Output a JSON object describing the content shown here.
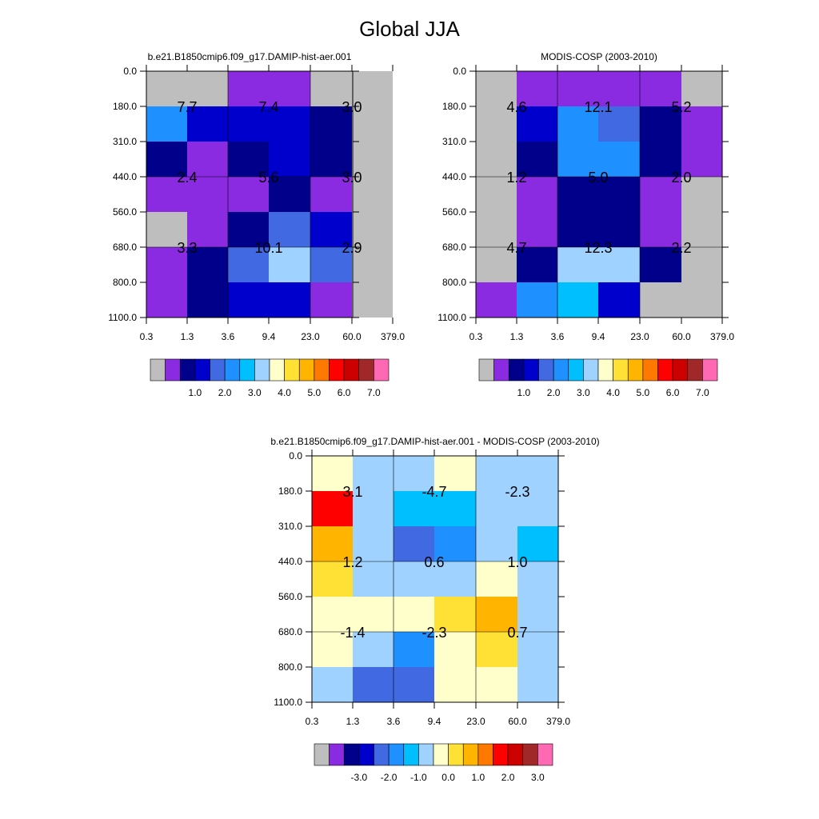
{
  "figure": {
    "title": "Global JJA"
  },
  "palette": {
    "missing": "#bebebe",
    "levels": [
      "#8a2be2",
      "#00008b",
      "#0000cd",
      "#4169e1",
      "#1e90ff",
      "#00bfff",
      "#a0d2ff",
      "#ffffcc",
      "#ffe135",
      "#ffb400",
      "#ff7800",
      "#ff0000",
      "#cd0000",
      "#a02828",
      "#ff69b4"
    ]
  },
  "colorbars": [
    {
      "labels": [
        "1.0",
        "2.0",
        "3.0",
        "4.0",
        "5.0",
        "6.0",
        "7.0"
      ]
    },
    {
      "labels": [
        "-3.0",
        "-2.0",
        "-1.0",
        "0.0",
        "1.0",
        "2.0",
        "3.0"
      ]
    }
  ],
  "chart_data": [
    {
      "type": "heatmap",
      "title": "b.e21.B1850cmip6.f09_g17.DAMIP-hist-aer.001",
      "x_ticks": [
        "0.3",
        "1.3",
        "3.6",
        "9.4",
        "23.0",
        "60.0",
        "379.0"
      ],
      "y_ticks": [
        "0.0",
        "180.0",
        "310.0",
        "440.0",
        "560.0",
        "680.0",
        "800.0",
        "1100.0"
      ],
      "colorbar": 0,
      "cells": [
        [
          -1,
          -1,
          0,
          0,
          -1,
          -1
        ],
        [
          4,
          2,
          2,
          2,
          1,
          -1
        ],
        [
          1,
          0,
          1,
          2,
          1,
          -1
        ],
        [
          0,
          0,
          0,
          1,
          0,
          -1
        ],
        [
          -1,
          0,
          1,
          3,
          2,
          -1
        ],
        [
          0,
          1,
          3,
          6,
          3,
          -1
        ],
        [
          0,
          1,
          2,
          2,
          0,
          -1
        ]
      ],
      "annotations": [
        [
          "7.7",
          "7.4",
          "3.0"
        ],
        [
          "2.4",
          "5.6",
          "3.0"
        ],
        [
          "3.3",
          "10.1",
          "2.9"
        ]
      ]
    },
    {
      "type": "heatmap",
      "title": "MODIS-COSP (2003-2010)",
      "x_ticks": [
        "0.3",
        "1.3",
        "3.6",
        "9.4",
        "23.0",
        "60.0",
        "379.0"
      ],
      "y_ticks": [
        "0.0",
        "180.0",
        "310.0",
        "440.0",
        "560.0",
        "680.0",
        "800.0",
        "1100.0"
      ],
      "colorbar": 0,
      "cells": [
        [
          -1,
          0,
          0,
          0,
          0,
          -1
        ],
        [
          -1,
          2,
          4,
          3,
          1,
          0
        ],
        [
          -1,
          1,
          4,
          4,
          1,
          0
        ],
        [
          -1,
          0,
          1,
          1,
          0,
          -1
        ],
        [
          -1,
          0,
          1,
          1,
          0,
          -1
        ],
        [
          -1,
          1,
          6,
          6,
          1,
          -1
        ],
        [
          0,
          4,
          5,
          2,
          -1,
          -1
        ]
      ],
      "annotations": [
        [
          "4.6",
          "12.1",
          "5.2"
        ],
        [
          "1.2",
          "5.0",
          "2.0"
        ],
        [
          "4.7",
          "12.3",
          "2.2"
        ]
      ]
    },
    {
      "type": "heatmap",
      "title": "b.e21.B1850cmip6.f09_g17.DAMIP-hist-aer.001 - MODIS-COSP (2003-2010)",
      "x_ticks": [
        "0.3",
        "1.3",
        "3.6",
        "9.4",
        "23.0",
        "60.0",
        "379.0"
      ],
      "y_ticks": [
        "0.0",
        "180.0",
        "310.0",
        "440.0",
        "560.0",
        "680.0",
        "800.0",
        "1100.0"
      ],
      "colorbar": 1,
      "cells": [
        [
          7,
          6,
          6,
          7,
          6,
          6
        ],
        [
          11,
          6,
          5,
          5,
          6,
          6
        ],
        [
          9,
          6,
          3,
          4,
          6,
          5
        ],
        [
          8,
          6,
          6,
          6,
          7,
          6
        ],
        [
          7,
          7,
          7,
          8,
          9,
          6
        ],
        [
          7,
          6,
          4,
          7,
          8,
          6
        ],
        [
          6,
          3,
          3,
          7,
          7,
          6
        ]
      ],
      "annotations": [
        [
          "3.1",
          "-4.7",
          "-2.3"
        ],
        [
          "1.2",
          "0.6",
          "1.0"
        ],
        [
          "-1.4",
          "-2.3",
          "0.7"
        ]
      ]
    }
  ]
}
